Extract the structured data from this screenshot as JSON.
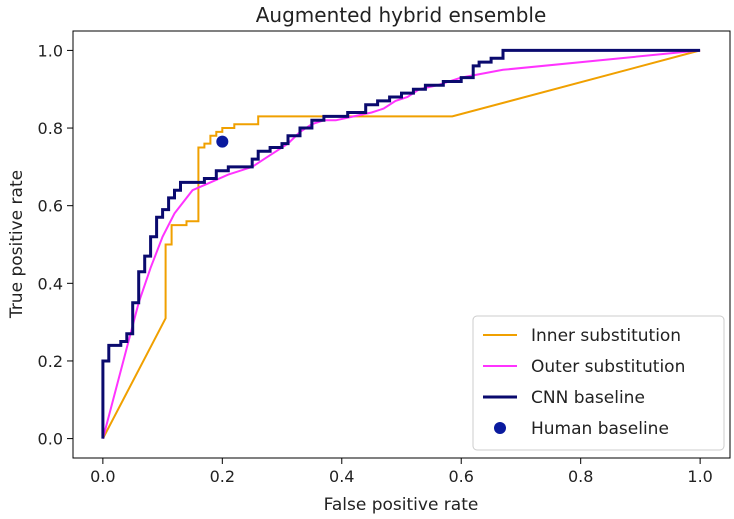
{
  "chart_data": {
    "type": "line",
    "title": "Augmented hybrid ensemble",
    "xlabel": "False positive rate",
    "ylabel": "True positive rate",
    "xlim": [
      -0.05,
      1.05
    ],
    "ylim": [
      -0.05,
      1.05
    ],
    "xticks": [
      0.0,
      0.2,
      0.4,
      0.6,
      0.8,
      1.0
    ],
    "xtick_labels": [
      "0.0",
      "0.2",
      "0.4",
      "0.6",
      "0.8",
      "1.0"
    ],
    "yticks": [
      0.0,
      0.2,
      0.4,
      0.6,
      0.8,
      1.0
    ],
    "ytick_labels": [
      "0.0",
      "0.2",
      "0.4",
      "0.6",
      "0.8",
      "1.0"
    ],
    "grid": false,
    "legend_position": "lower-right",
    "series": [
      {
        "name": "Inner substitution",
        "color": "#f0a000",
        "kind": "line",
        "x": [
          0.0,
          0.105,
          0.105,
          0.115,
          0.115,
          0.14,
          0.14,
          0.16,
          0.16,
          0.17,
          0.17,
          0.18,
          0.18,
          0.19,
          0.19,
          0.2,
          0.2,
          0.22,
          0.22,
          0.26,
          0.26,
          0.585,
          1.0
        ],
        "y": [
          0.0,
          0.31,
          0.5,
          0.5,
          0.55,
          0.55,
          0.56,
          0.56,
          0.75,
          0.75,
          0.76,
          0.76,
          0.78,
          0.78,
          0.79,
          0.79,
          0.8,
          0.8,
          0.81,
          0.81,
          0.83,
          0.83,
          1.0
        ]
      },
      {
        "name": "Outer substitution",
        "color": "#ff33ff",
        "kind": "line",
        "x": [
          0.0,
          0.06,
          0.06,
          0.08,
          0.08,
          0.1,
          0.1,
          0.12,
          0.12,
          0.15,
          0.15,
          0.18,
          0.18,
          0.21,
          0.21,
          0.25,
          0.25,
          0.27,
          0.27,
          0.29,
          0.29,
          0.31,
          0.31,
          0.33,
          0.33,
          0.35,
          0.35,
          0.37,
          0.37,
          0.39,
          0.39,
          0.42,
          0.42,
          0.45,
          0.45,
          0.47,
          0.47,
          0.49,
          0.49,
          0.51,
          0.51,
          0.53,
          0.53,
          0.56,
          0.56,
          0.6,
          0.6,
          0.67,
          0.67,
          1.0
        ],
        "y": [
          0.0,
          0.35,
          0.35,
          0.44,
          0.44,
          0.52,
          0.52,
          0.58,
          0.58,
          0.64,
          0.64,
          0.66,
          0.66,
          0.68,
          0.68,
          0.7,
          0.7,
          0.72,
          0.72,
          0.74,
          0.74,
          0.76,
          0.76,
          0.79,
          0.79,
          0.81,
          0.81,
          0.82,
          0.82,
          0.82,
          0.82,
          0.83,
          0.83,
          0.84,
          0.84,
          0.85,
          0.85,
          0.87,
          0.87,
          0.88,
          0.88,
          0.9,
          0.9,
          0.91,
          0.91,
          0.93,
          0.93,
          0.95,
          0.95,
          1.0
        ]
      },
      {
        "name": "CNN baseline",
        "color": "#0a0a6e",
        "kind": "line",
        "x": [
          0.0,
          0.0,
          0.01,
          0.01,
          0.03,
          0.03,
          0.04,
          0.04,
          0.05,
          0.05,
          0.06,
          0.06,
          0.07,
          0.07,
          0.08,
          0.08,
          0.09,
          0.09,
          0.1,
          0.1,
          0.11,
          0.11,
          0.12,
          0.12,
          0.13,
          0.13,
          0.15,
          0.15,
          0.17,
          0.17,
          0.19,
          0.19,
          0.21,
          0.21,
          0.25,
          0.25,
          0.26,
          0.26,
          0.28,
          0.28,
          0.3,
          0.3,
          0.31,
          0.31,
          0.33,
          0.33,
          0.35,
          0.35,
          0.37,
          0.37,
          0.38,
          0.38,
          0.41,
          0.41,
          0.44,
          0.44,
          0.46,
          0.46,
          0.48,
          0.48,
          0.5,
          0.5,
          0.52,
          0.52,
          0.54,
          0.54,
          0.57,
          0.57,
          0.6,
          0.6,
          0.62,
          0.62,
          0.63,
          0.63,
          0.65,
          0.65,
          0.67,
          0.67,
          1.0
        ],
        "y": [
          0.0,
          0.2,
          0.2,
          0.24,
          0.24,
          0.25,
          0.25,
          0.27,
          0.27,
          0.35,
          0.35,
          0.43,
          0.43,
          0.47,
          0.47,
          0.52,
          0.52,
          0.57,
          0.57,
          0.59,
          0.59,
          0.62,
          0.62,
          0.64,
          0.64,
          0.66,
          0.66,
          0.66,
          0.66,
          0.67,
          0.67,
          0.69,
          0.69,
          0.7,
          0.7,
          0.72,
          0.72,
          0.74,
          0.74,
          0.75,
          0.75,
          0.76,
          0.76,
          0.78,
          0.78,
          0.8,
          0.8,
          0.82,
          0.82,
          0.83,
          0.83,
          0.83,
          0.83,
          0.84,
          0.84,
          0.86,
          0.86,
          0.87,
          0.87,
          0.88,
          0.88,
          0.89,
          0.89,
          0.9,
          0.9,
          0.91,
          0.91,
          0.92,
          0.92,
          0.93,
          0.93,
          0.96,
          0.96,
          0.97,
          0.97,
          0.98,
          0.98,
          1.0,
          1.0
        ]
      },
      {
        "name": "Human baseline",
        "color": "#0a1a9e",
        "kind": "scatter",
        "x": [
          0.2
        ],
        "y": [
          0.765
        ]
      }
    ]
  }
}
